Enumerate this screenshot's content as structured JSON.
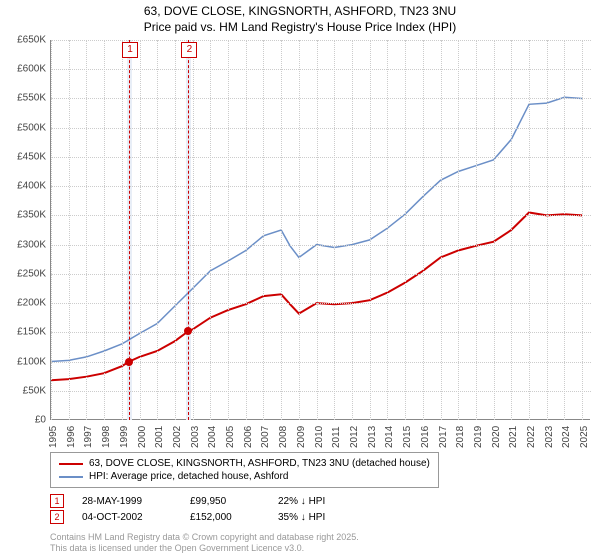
{
  "title_line1": "63, DOVE CLOSE, KINGSNORTH, ASHFORD, TN23 3NU",
  "title_line2": "Price paid vs. HM Land Registry's House Price Index (HPI)",
  "chart": {
    "type": "line",
    "background_color": "#ffffff",
    "grid_color": "#cccccc",
    "ylim": [
      0,
      650000
    ],
    "ytick_step": 50000,
    "ytick_labels": [
      "£0",
      "£50K",
      "£100K",
      "£150K",
      "£200K",
      "£250K",
      "£300K",
      "£350K",
      "£400K",
      "£450K",
      "£500K",
      "£550K",
      "£600K",
      "£650K"
    ],
    "xlim": [
      1995,
      2025.5
    ],
    "xticks": [
      1995,
      1996,
      1997,
      1998,
      1999,
      2000,
      2001,
      2002,
      2003,
      2004,
      2005,
      2006,
      2007,
      2008,
      2009,
      2010,
      2011,
      2012,
      2013,
      2014,
      2015,
      2016,
      2017,
      2018,
      2019,
      2020,
      2021,
      2022,
      2023,
      2024,
      2025
    ],
    "shade_ranges": [
      {
        "from": 1999.3,
        "to": 1999.6,
        "color": "#e8eef7"
      },
      {
        "from": 2002.6,
        "to": 2002.9,
        "color": "#e8eef7"
      }
    ],
    "markers": [
      {
        "x": 1999.41,
        "label": "1",
        "color": "#cc0000"
      },
      {
        "x": 2002.76,
        "label": "2",
        "color": "#cc0000"
      }
    ],
    "series": [
      {
        "name": "property",
        "label": "63, DOVE CLOSE, KINGSNORTH, ASHFORD, TN23 3NU (detached house)",
        "color": "#cc0000",
        "line_width": 2,
        "points": [
          [
            1995,
            68000
          ],
          [
            1996,
            70000
          ],
          [
            1997,
            74000
          ],
          [
            1998,
            80000
          ],
          [
            1999,
            92000
          ],
          [
            1999.41,
            99950
          ],
          [
            2000,
            108000
          ],
          [
            2001,
            118000
          ],
          [
            2002,
            135000
          ],
          [
            2002.76,
            152000
          ],
          [
            2003,
            155000
          ],
          [
            2004,
            175000
          ],
          [
            2005,
            188000
          ],
          [
            2006,
            198000
          ],
          [
            2007,
            212000
          ],
          [
            2008,
            215000
          ],
          [
            2008.5,
            198000
          ],
          [
            2009,
            182000
          ],
          [
            2010,
            200000
          ],
          [
            2011,
            198000
          ],
          [
            2012,
            200000
          ],
          [
            2013,
            205000
          ],
          [
            2014,
            218000
          ],
          [
            2015,
            235000
          ],
          [
            2016,
            255000
          ],
          [
            2017,
            278000
          ],
          [
            2018,
            290000
          ],
          [
            2019,
            298000
          ],
          [
            2020,
            305000
          ],
          [
            2021,
            325000
          ],
          [
            2022,
            355000
          ],
          [
            2023,
            350000
          ],
          [
            2024,
            352000
          ],
          [
            2025,
            350000
          ]
        ],
        "sale_points": [
          {
            "x": 1999.41,
            "y": 99950
          },
          {
            "x": 2002.76,
            "y": 152000
          }
        ]
      },
      {
        "name": "hpi",
        "label": "HPI: Average price, detached house, Ashford",
        "color": "#6b8fc7",
        "line_width": 1.5,
        "points": [
          [
            1995,
            100000
          ],
          [
            1996,
            102000
          ],
          [
            1997,
            108000
          ],
          [
            1998,
            118000
          ],
          [
            1999,
            130000
          ],
          [
            2000,
            148000
          ],
          [
            2001,
            165000
          ],
          [
            2002,
            195000
          ],
          [
            2003,
            225000
          ],
          [
            2004,
            255000
          ],
          [
            2005,
            272000
          ],
          [
            2006,
            290000
          ],
          [
            2007,
            315000
          ],
          [
            2008,
            325000
          ],
          [
            2008.5,
            298000
          ],
          [
            2009,
            278000
          ],
          [
            2010,
            300000
          ],
          [
            2011,
            295000
          ],
          [
            2012,
            300000
          ],
          [
            2013,
            308000
          ],
          [
            2014,
            328000
          ],
          [
            2015,
            352000
          ],
          [
            2016,
            382000
          ],
          [
            2017,
            410000
          ],
          [
            2018,
            425000
          ],
          [
            2019,
            435000
          ],
          [
            2020,
            445000
          ],
          [
            2021,
            480000
          ],
          [
            2022,
            540000
          ],
          [
            2023,
            542000
          ],
          [
            2024,
            552000
          ],
          [
            2025,
            550000
          ]
        ]
      }
    ]
  },
  "sales": [
    {
      "badge": "1",
      "date": "28-MAY-1999",
      "price": "£99,950",
      "delta": "22% ↓ HPI",
      "color": "#cc0000"
    },
    {
      "badge": "2",
      "date": "04-OCT-2002",
      "price": "£152,000",
      "delta": "35% ↓ HPI",
      "color": "#cc0000"
    }
  ],
  "footer_line1": "Contains HM Land Registry data © Crown copyright and database right 2025.",
  "footer_line2": "This data is licensed under the Open Government Licence v3.0."
}
